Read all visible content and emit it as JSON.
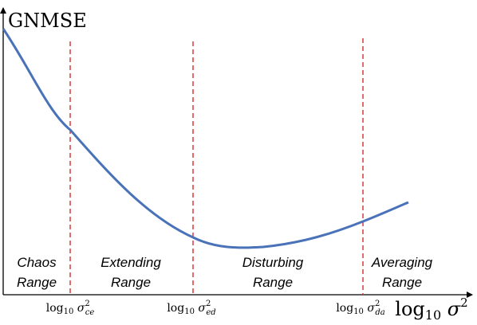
{
  "diagram": {
    "y_axis_label": "GNMSE",
    "x_axis_label": {
      "base": "log",
      "sub": "10",
      "var": "σ",
      "sup": "2"
    },
    "thresholds": [
      {
        "base": "log",
        "sub": "10",
        "var": "σ",
        "sup": "2",
        "var_sub": "ce"
      },
      {
        "base": "log",
        "sub": "10",
        "var": "σ",
        "sup": "2",
        "var_sub": "ed"
      },
      {
        "base": "log",
        "sub": "10",
        "var": "σ",
        "sup": "2",
        "var_sub": "da"
      }
    ],
    "ranges": [
      {
        "line1": "Chaos",
        "line2": "Range"
      },
      {
        "line1": "Extending",
        "line2": "Range"
      },
      {
        "line1": "Disturbing",
        "line2": "Range"
      },
      {
        "line1": "Averaging",
        "line2": "Range"
      }
    ],
    "colors": {
      "curve": "#4a72b8",
      "threshold": "#d93a3a",
      "axis": "#000000",
      "text": "#000000"
    }
  }
}
